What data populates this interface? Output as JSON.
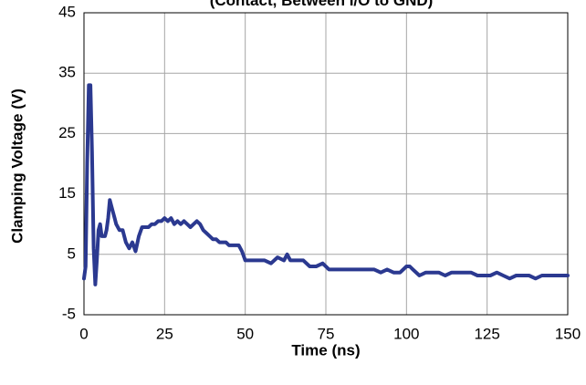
{
  "chart_data": {
    "type": "line",
    "title": "(Contact, Between I/O to GND)",
    "xlabel": "Time (ns)",
    "ylabel": "Clamping Voltage (V)",
    "xlim": [
      0,
      150
    ],
    "ylim": [
      -5,
      45
    ],
    "x_ticks": [
      0,
      25,
      50,
      75,
      100,
      125,
      150
    ],
    "y_ticks": [
      -5,
      5,
      15,
      25,
      35,
      45
    ],
    "x_tick_labels": [
      "0",
      "25",
      "50",
      "75",
      "100",
      "125",
      "150"
    ],
    "y_tick_labels": [
      "-5",
      "5",
      "15",
      "25",
      "35",
      "45"
    ],
    "grid": true,
    "colors": {
      "series": "#2b3990",
      "grid": "#a6a6a6",
      "frame": "#000000"
    },
    "series": [
      {
        "x": [
          0,
          0.5,
          1,
          1.5,
          2,
          2.5,
          3,
          3.5,
          4,
          4.5,
          5,
          5.5,
          6,
          6.5,
          7,
          7.5,
          8,
          8.5,
          9,
          9.5,
          10,
          11,
          12,
          13,
          14,
          15,
          16,
          17,
          18,
          19,
          20,
          21,
          22,
          23,
          24,
          25,
          26,
          27,
          28,
          29,
          30,
          31,
          32,
          33,
          34,
          35,
          36,
          37,
          38,
          39,
          40,
          41,
          42,
          43,
          44,
          45,
          46,
          47,
          48,
          49,
          50,
          52,
          54,
          56,
          58,
          60,
          62,
          63,
          64,
          66,
          68,
          70,
          72,
          74,
          76,
          78,
          80,
          82,
          84,
          86,
          88,
          90,
          92,
          94,
          96,
          98,
          100,
          101,
          102,
          104,
          106,
          108,
          110,
          112,
          114,
          116,
          118,
          120,
          122,
          124,
          126,
          128,
          130,
          132,
          134,
          136,
          138,
          140,
          142,
          144,
          146,
          148,
          150
        ],
        "y": [
          1,
          3,
          20,
          33,
          33,
          22,
          6,
          0,
          4,
          9,
          10,
          8,
          8,
          8,
          9,
          11,
          14,
          13,
          12,
          11,
          10,
          9,
          9,
          7,
          6,
          7,
          5.5,
          8,
          9.5,
          9.5,
          9.5,
          10,
          10,
          10.5,
          10.5,
          11,
          10.5,
          11,
          10,
          10.5,
          10,
          10.5,
          10,
          9.5,
          10,
          10.5,
          10,
          9,
          8.5,
          8,
          7.5,
          7.5,
          7,
          7,
          7,
          6.5,
          6.5,
          6.5,
          6.5,
          5.5,
          4,
          4,
          4,
          4,
          3.5,
          4.5,
          4,
          5,
          4,
          4,
          4,
          3,
          3,
          3.5,
          2.5,
          2.5,
          2.5,
          2.5,
          2.5,
          2.5,
          2.5,
          2.5,
          2,
          2.5,
          2,
          2,
          3,
          3,
          2.5,
          1.5,
          2,
          2,
          2,
          1.5,
          2,
          2,
          2,
          2,
          1.5,
          1.5,
          1.5,
          2,
          1.5,
          1,
          1.5,
          1.5,
          1.5,
          1,
          1.5,
          1.5,
          1.5,
          1.5,
          1.5
        ]
      }
    ]
  }
}
